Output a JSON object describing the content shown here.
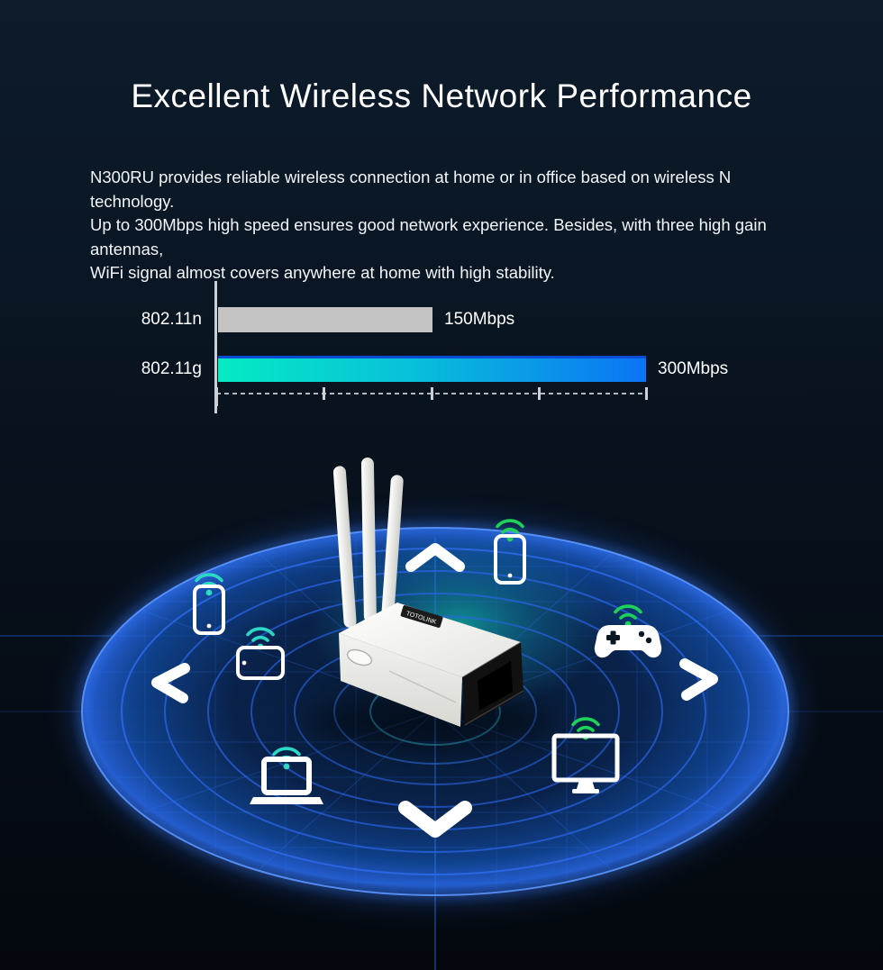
{
  "page": {
    "title": "Excellent Wireless Network Performance"
  },
  "intro": {
    "lines": [
      "N300RU provides reliable wireless connection at home or in office based on wireless N technology.",
      "Up to 300Mbps high speed ensures good network experience. Besides, with three high gain antennas,",
      "WiFi signal almost covers anywhere at home with high stability."
    ]
  },
  "chart_data": {
    "type": "bar",
    "orientation": "horizontal",
    "title": "",
    "categories": [
      "802.11n",
      "802.11g"
    ],
    "values": [
      150,
      300
    ],
    "unit": "Mbps",
    "value_labels": [
      "150Mbps",
      "300Mbps"
    ],
    "xlim": [
      0,
      300
    ],
    "x_tick_count": 5,
    "x_tick_values": [
      0,
      75,
      150,
      225,
      300
    ],
    "grid": false,
    "legend": "none",
    "axis_color": "#ccd0d4",
    "bar_backgrounds": [
      "#c3c3c3",
      "linear-gradient(90deg, #05eac3 0%, #08c0da 45%, #0b74f5 100%)"
    ]
  },
  "illustration": {
    "router_logo": "TOTOLINK",
    "arrows": [
      "up",
      "left",
      "right",
      "down"
    ],
    "devices": [
      {
        "id": "smartphone-left",
        "type": "smartphone",
        "wifi": "teal"
      },
      {
        "id": "tablet-left",
        "type": "tablet",
        "wifi": "teal"
      },
      {
        "id": "laptop-left",
        "type": "laptop",
        "wifi": "teal"
      },
      {
        "id": "smartphone-right",
        "type": "smartphone",
        "wifi": "green"
      },
      {
        "id": "gamepad-right",
        "type": "game-controller",
        "wifi": "green"
      },
      {
        "id": "monitor-right",
        "type": "monitor",
        "wifi": "green"
      }
    ],
    "colors": {
      "wifi_teal": "#2cd9c5",
      "wifi_green": "#1ed158",
      "ring_blue": "#2e74ff",
      "glow_cyan": "#14e6cc",
      "router_white": "#f2f2ef",
      "background_navy": "#0a1623"
    }
  }
}
